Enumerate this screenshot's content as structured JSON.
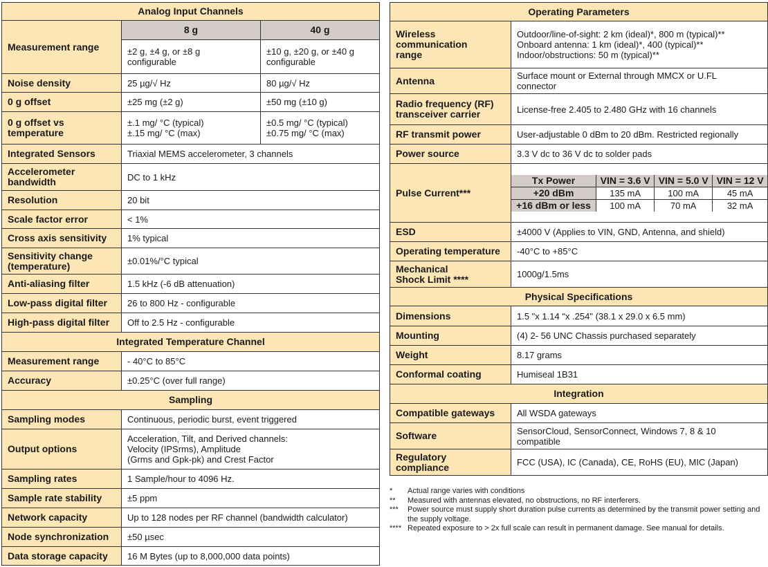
{
  "left": {
    "sections": [
      {
        "title": "Analog Input Channels",
        "columns": [
          "8 g",
          "40 g"
        ],
        "rows": [
          {
            "label": "Measurement range",
            "values": [
              "±2 g, ±4 g, or ±8 g\nconfigurable",
              "±10 g, ±20 g, or ±40 g\nconfigurable"
            ],
            "with_columns": true
          },
          {
            "label": "Noise density",
            "values": [
              "25 µg/√ Hz",
              "80 µg/√ Hz"
            ]
          },
          {
            "label": "0 g offset",
            "values": [
              "±25 mg (±2 g)",
              "±50 mg (±10 g)"
            ]
          },
          {
            "label": "0 g offset vs\ntemperature",
            "values": [
              "±.1 mg/ °C (typical)\n±.15 mg/ °C (max)",
              "±0.5 mg/ °C (typical)\n±0.75 mg/ °C (max)"
            ]
          },
          {
            "label": "Integrated Sensors",
            "values": [
              "Triaxial MEMS accelerometer, 3 channels"
            ]
          },
          {
            "label": "Accelerometer\nbandwidth",
            "values": [
              "DC to 1 kHz"
            ]
          },
          {
            "label": "Resolution",
            "values": [
              "20 bit"
            ]
          },
          {
            "label": "Scale factor error",
            "values": [
              "< 1%"
            ]
          },
          {
            "label": "Cross axis sensitivity",
            "values": [
              "1% typical"
            ]
          },
          {
            "label": "Sensitivity change\n(temperature)",
            "values": [
              "±0.01%/°C typical"
            ]
          },
          {
            "label": "Anti-aliasing filter",
            "values": [
              "1.5 kHz (-6 dB attenuation)"
            ]
          },
          {
            "label": "Low-pass digital filter",
            "values": [
              "26 to 800 Hz - configurable"
            ]
          },
          {
            "label": "High-pass digital filter",
            "values": [
              "Off to 2.5 Hz - configurable"
            ]
          }
        ]
      },
      {
        "title": "Integrated Temperature Channel",
        "rows": [
          {
            "label": "Measurement range",
            "values": [
              "- 40°C to 85°C"
            ]
          },
          {
            "label": "Accuracy",
            "values": [
              "±0.25°C (over full range)"
            ]
          }
        ]
      },
      {
        "title": "Sampling",
        "rows": [
          {
            "label": "Sampling modes",
            "values": [
              "Continuous, periodic burst, event triggered"
            ]
          },
          {
            "label": "Output options",
            "values": [
              "Acceleration, Tilt, and Derived channels:\nVelocity (IPSrms), Amplitude\n(Grms and Gpk-pk) and Crest Factor"
            ]
          },
          {
            "label": "Sampling rates",
            "values": [
              "1 Sample/hour to 4096 Hz."
            ]
          },
          {
            "label": "Sample rate stability",
            "values": [
              "±5 ppm"
            ]
          },
          {
            "label": "Network capacity",
            "values": [
              "Up to 128 nodes per RF channel (bandwidth calculator)"
            ]
          },
          {
            "label": "Node synchronization",
            "values": [
              "±50 µsec"
            ]
          },
          {
            "label": "Data storage capacity",
            "values": [
              "16 M Bytes (up to 8,000,000 data points)"
            ]
          }
        ]
      }
    ]
  },
  "right": {
    "sections": [
      {
        "title": "Operating Parameters",
        "rows": [
          {
            "label": "Wireless\ncommunication\nrange",
            "values": [
              "Outdoor/line-of-sight: 2 km (ideal)*, 800 m (typical)**\nOnboard antenna: 1 km (ideal)*, 400 (typical)**\nIndoor/obstructions: 50 m (typical)**"
            ]
          },
          {
            "label": "Antenna",
            "values": [
              "Surface mount or External through MMCX or U.FL\nconnector"
            ]
          },
          {
            "label": "Radio frequency (RF)\ntransceiver carrier",
            "values": [
              "License-free 2.405 to 2.480 GHz with 16 channels"
            ]
          },
          {
            "label": "RF transmit power",
            "values": [
              "User-adjustable 0 dBm to 20 dBm. Restricted regionally"
            ]
          },
          {
            "label": "Power source",
            "values": [
              "3.3 V dc to 36 V dc to solder pads"
            ]
          },
          {
            "label": "Pulse Current***",
            "subtable": {
              "headers": [
                "Tx Power",
                "VIN = 3.6 V",
                "VIN = 5.0 V",
                "VIN = 12 V"
              ],
              "rows": [
                [
                  "+20 dBm",
                  "135 mA",
                  "100 mA",
                  "45 mA"
                ],
                [
                  "+16 dBm or less",
                  "100 mA",
                  "70 mA",
                  "32 mA"
                ]
              ]
            }
          },
          {
            "label": "ESD",
            "values": [
              "±4000 V (Applies to VIN, GND, Antenna, and shield)"
            ]
          },
          {
            "label": "Operating temperature",
            "values": [
              "-40°C to +85°C"
            ]
          },
          {
            "label": "Mechanical\nShock Limit ****",
            "values": [
              "1000g/1.5ms"
            ]
          }
        ]
      },
      {
        "title": "Physical Specifications",
        "rows": [
          {
            "label": "Dimensions",
            "values": [
              "1.5 \"x 1.14 \"x .254\" (38.1 x 29.0 x 6.5 mm)"
            ]
          },
          {
            "label": "Mounting",
            "values": [
              "(4) 2- 56 UNC  Chassis purchased separately"
            ]
          },
          {
            "label": "Weight",
            "values": [
              "8.17 grams"
            ]
          },
          {
            "label": "Conformal coating",
            "values": [
              "Humiseal 1B31"
            ]
          }
        ]
      },
      {
        "title": "Integration",
        "rows": [
          {
            "label": "Compatible gateways",
            "values": [
              "All WSDA gateways"
            ]
          },
          {
            "label": "Software",
            "values": [
              "SensorCloud, SensorConnect, Windows 7, 8 & 10\ncompatible"
            ]
          },
          {
            "label": "Regulatory\ncompliance",
            "values": [
              "FCC (USA), IC (Canada), CE, RoHS (EU), MIC (Japan)"
            ]
          }
        ]
      }
    ]
  },
  "footnotes": [
    {
      "mark": "*",
      "text": "Actual range varies with conditions"
    },
    {
      "mark": "**",
      "text": "Measured with antennas elevated, no obstructions, no RF interferers."
    },
    {
      "mark": "***",
      "text": "Power source must supply short duration pulse currents as determined by the transmit power setting and the supply voltage."
    },
    {
      "mark": "****",
      "text": "Repeated exposure to > 2x full scale can result in permanent damage. See manual for details."
    }
  ],
  "colors": {
    "label_bg": "#fde6b6",
    "column_header_bg": "#d4ccc8",
    "border": "#333333"
  }
}
